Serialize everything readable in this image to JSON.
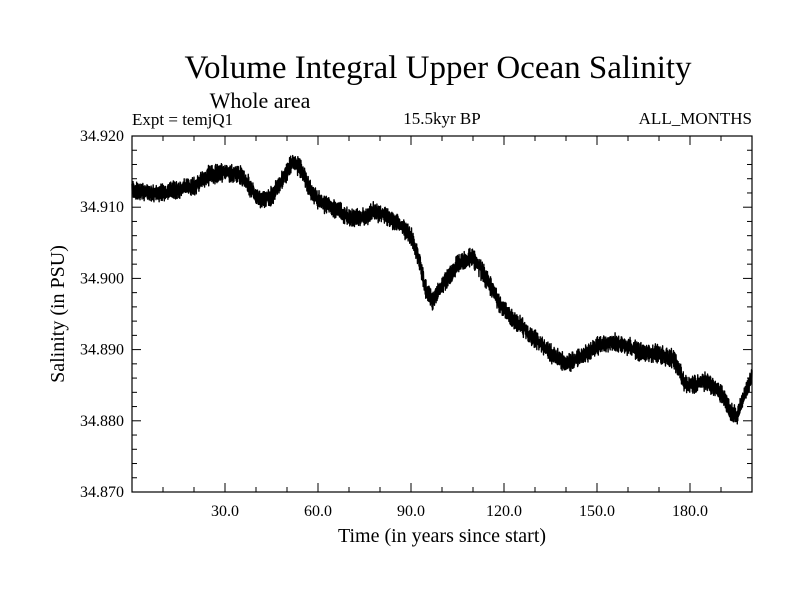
{
  "chart_data": {
    "type": "line",
    "title": "Volume Integral Upper Ocean Salinity",
    "subtitle": "Whole area",
    "annotations": {
      "experiment": "Expt = temjQ1",
      "period": "15.5kyr BP",
      "months": "ALL_MONTHS"
    },
    "xlabel": "Time (in years since start)",
    "ylabel": "Salinity (in PSU)",
    "xlim": [
      0,
      200
    ],
    "ylim": [
      34.87,
      34.92
    ],
    "xticks": [
      30,
      60,
      90,
      120,
      150,
      180
    ],
    "xtick_labels": [
      "30.0",
      "60.0",
      "90.0",
      "120.0",
      "150.0",
      "180.0"
    ],
    "yticks": [
      34.87,
      34.88,
      34.89,
      34.9,
      34.91,
      34.92
    ],
    "ytick_labels": [
      "34.870",
      "34.880",
      "34.890",
      "34.900",
      "34.910",
      "34.920"
    ],
    "grid": false,
    "series": [
      {
        "name": "salinity",
        "x": [
          0,
          5,
          10,
          15,
          20,
          25,
          30,
          35,
          37,
          40,
          42,
          45,
          48,
          50,
          52,
          55,
          58,
          60,
          65,
          70,
          75,
          78,
          80,
          85,
          90,
          93,
          95,
          97,
          100,
          105,
          110,
          115,
          118,
          120,
          125,
          130,
          135,
          140,
          145,
          150,
          155,
          160,
          165,
          170,
          175,
          178,
          180,
          185,
          190,
          193,
          195,
          198,
          200
        ],
        "values": [
          34.9125,
          34.912,
          34.912,
          34.9125,
          34.913,
          34.9145,
          34.915,
          34.9145,
          34.9135,
          34.9115,
          34.911,
          34.9115,
          34.9135,
          34.915,
          34.9165,
          34.915,
          34.912,
          34.911,
          34.91,
          34.9085,
          34.9085,
          34.9095,
          34.909,
          34.908,
          34.906,
          34.902,
          34.898,
          34.897,
          34.899,
          34.902,
          34.903,
          34.8995,
          34.897,
          34.8955,
          34.8935,
          34.8915,
          34.8895,
          34.888,
          34.889,
          34.8905,
          34.891,
          34.8905,
          34.8895,
          34.8895,
          34.8885,
          34.8855,
          34.885,
          34.8855,
          34.884,
          34.8815,
          34.8805,
          34.884,
          34.8865
        ]
      }
    ],
    "noise_amplitude": 0.0012
  }
}
